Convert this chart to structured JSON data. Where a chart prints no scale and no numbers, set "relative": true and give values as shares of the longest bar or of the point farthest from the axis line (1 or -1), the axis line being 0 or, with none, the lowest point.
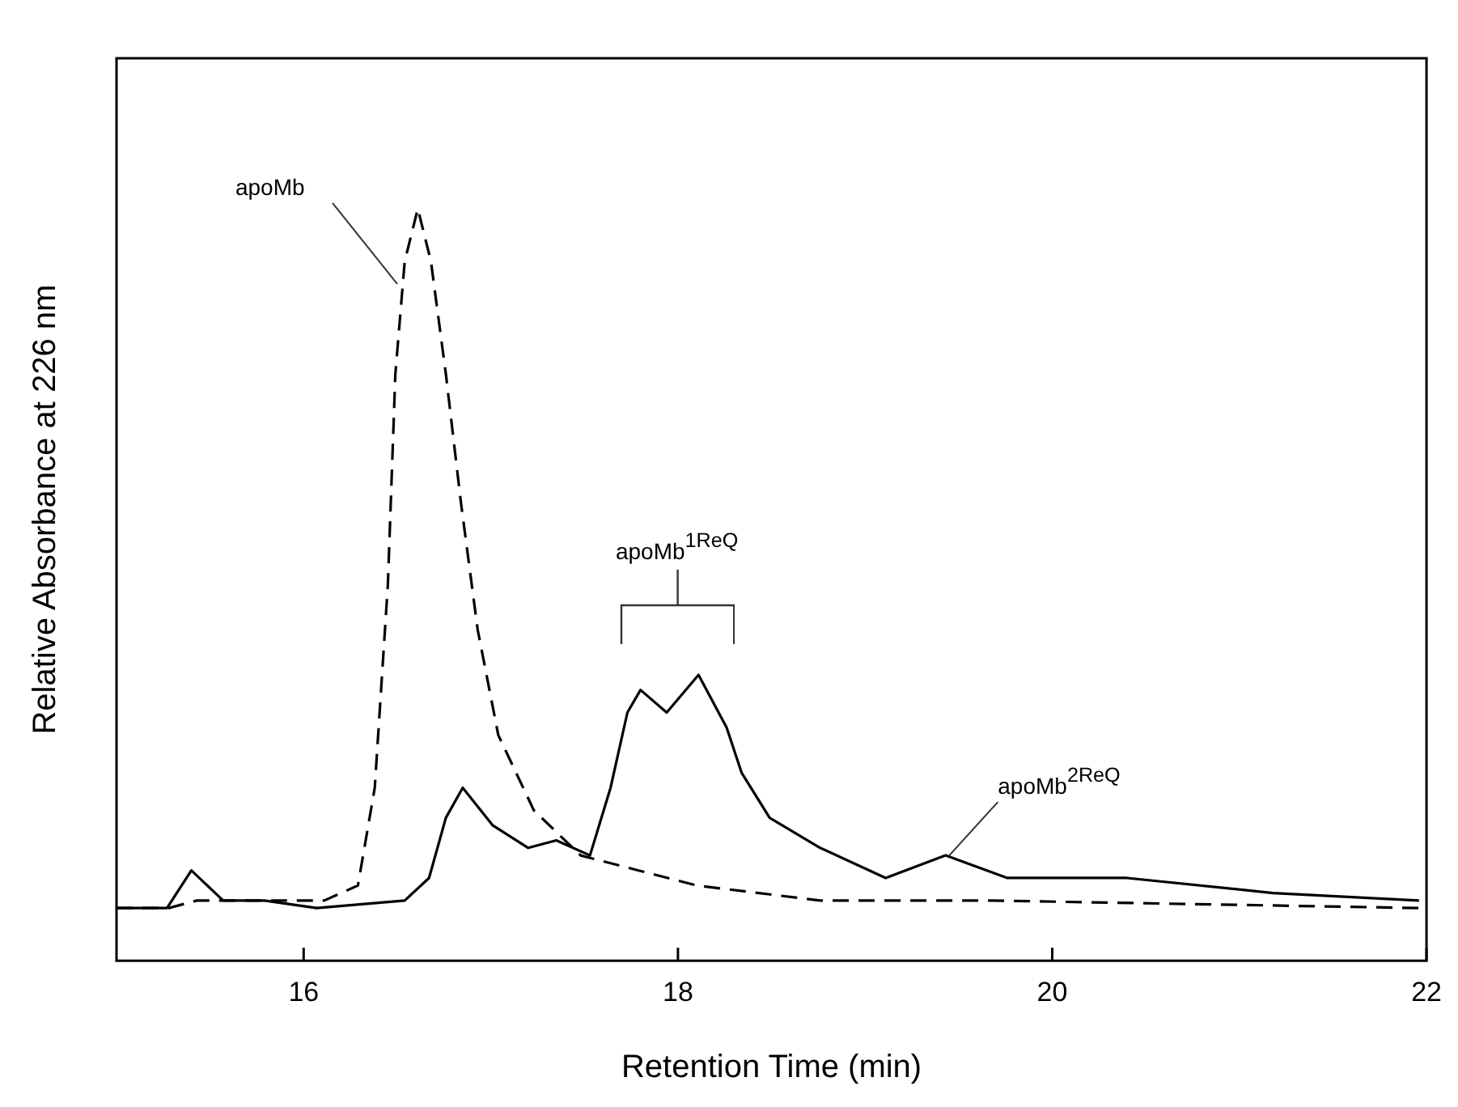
{
  "chart_data": {
    "type": "line",
    "xlabel": "Retention Time (min)",
    "ylabel": "Relative Absorbance at 226 nm",
    "relative": true,
    "xlim": [
      15,
      22
    ],
    "xticks": [
      16,
      18,
      20,
      22
    ],
    "grid": false,
    "legend": false,
    "marker": "none",
    "series": [
      {
        "color": "#000000",
        "line_style": "solid",
        "x": [
          15.0,
          15.27,
          15.4,
          15.57,
          15.79,
          16.07,
          16.54,
          16.67,
          16.76,
          16.85,
          17.01,
          17.2,
          17.35,
          17.53,
          17.64,
          17.73,
          17.8,
          17.94,
          18.11,
          18.26,
          18.34,
          18.49,
          18.76,
          19.11,
          19.43,
          19.76,
          20.4,
          21.18,
          21.96
        ],
        "values": [
          0.07,
          0.07,
          0.12,
          0.08,
          0.08,
          0.07,
          0.08,
          0.11,
          0.19,
          0.23,
          0.18,
          0.15,
          0.16,
          0.14,
          0.23,
          0.33,
          0.36,
          0.33,
          0.38,
          0.31,
          0.25,
          0.19,
          0.15,
          0.11,
          0.14,
          0.11,
          0.11,
          0.09,
          0.08
        ]
      },
      {
        "color": "#000000",
        "line_style": "dashed",
        "x": [
          15.0,
          15.28,
          15.43,
          15.57,
          16.11,
          16.29,
          16.38,
          16.45,
          16.49,
          16.54,
          16.61,
          16.68,
          16.76,
          16.84,
          16.93,
          17.04,
          17.23,
          17.48,
          17.79,
          18.1,
          18.76,
          19.67,
          21.96
        ],
        "values": [
          0.07,
          0.07,
          0.08,
          0.08,
          0.08,
          0.1,
          0.23,
          0.5,
          0.78,
          0.93,
          1.0,
          0.93,
          0.78,
          0.61,
          0.44,
          0.3,
          0.2,
          0.14,
          0.12,
          0.1,
          0.08,
          0.08,
          0.07
        ]
      }
    ],
    "annotations": [
      {
        "text": "apoMb",
        "x": 16.5,
        "y": 0.9
      },
      "apoMb$^{1ReQ}$",
      {
        "text": "apoMb$^{2ReQ}$",
        "x": 19.45,
        "y": 0.14
      }
    ]
  }
}
